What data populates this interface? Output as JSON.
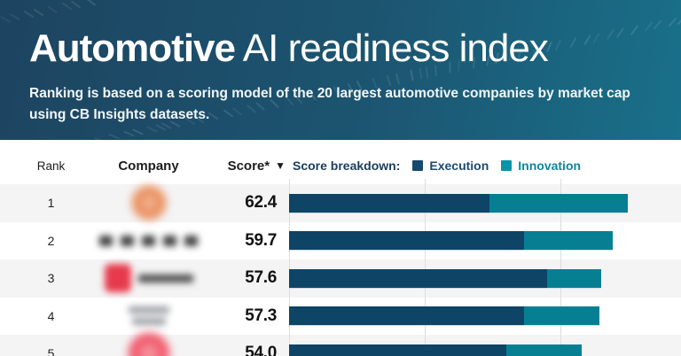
{
  "header": {
    "title_bold": "Automotive",
    "title_rest": " AI readiness index",
    "subtitle": "Ranking is based on a scoring model of the 20 largest automotive companies by market cap using CB Insights datasets.",
    "bg_left": "#1d4460",
    "bg_right": "#19708a"
  },
  "table": {
    "columns": {
      "rank": "Rank",
      "company": "Company",
      "score": "Score*",
      "sort_icon": "▼"
    },
    "legend": {
      "label": "Score breakdown:",
      "items": [
        {
          "label": "Execution",
          "swatch_color": "#15496e",
          "text_color": "#1b4a70"
        },
        {
          "label": "Innovation",
          "swatch_color": "#0c93a8",
          "text_color": "#0c879d"
        }
      ]
    }
  },
  "chart_data": {
    "type": "bar",
    "orientation": "horizontal",
    "stacked": true,
    "title": "Automotive AI readiness index",
    "categories": [
      "1",
      "2",
      "3",
      "4",
      "5"
    ],
    "series": [
      {
        "name": "Execution",
        "color": "#0e4466",
        "values": [
          37.0,
          43.3,
          47.6,
          43.3,
          40.0
        ]
      },
      {
        "name": "Innovation",
        "color": "#077f93",
        "values": [
          25.4,
          16.4,
          10.0,
          14.0,
          14.0
        ]
      }
    ],
    "totals": [
      62.4,
      59.7,
      57.6,
      57.3,
      54.0
    ],
    "xlim": [
      0,
      72
    ],
    "gridlines_pts": [
      0,
      25,
      50
    ],
    "legend_position": "top",
    "note": "rows 6-20 cut off below the visible area"
  },
  "rows": [
    {
      "rank": "1",
      "score": "62.4",
      "logo": {
        "type": "disc",
        "color": "#e8824b",
        "size": 38
      }
    },
    {
      "rank": "2",
      "score": "59.7",
      "logo": {
        "type": "wordmark",
        "color": "#404040",
        "blocks": 5
      }
    },
    {
      "rank": "3",
      "score": "57.6",
      "logo": {
        "type": "badge_wordmark",
        "badge_color": "#e63a4c",
        "text_color": "#4a4a4a"
      }
    },
    {
      "rank": "4",
      "score": "57.3",
      "logo": {
        "type": "two_line_text",
        "color": "#9aa0a6"
      }
    },
    {
      "rank": "5",
      "score": "54.0",
      "logo": {
        "type": "disc",
        "color": "#ef4b5e",
        "size": 46
      }
    }
  ]
}
